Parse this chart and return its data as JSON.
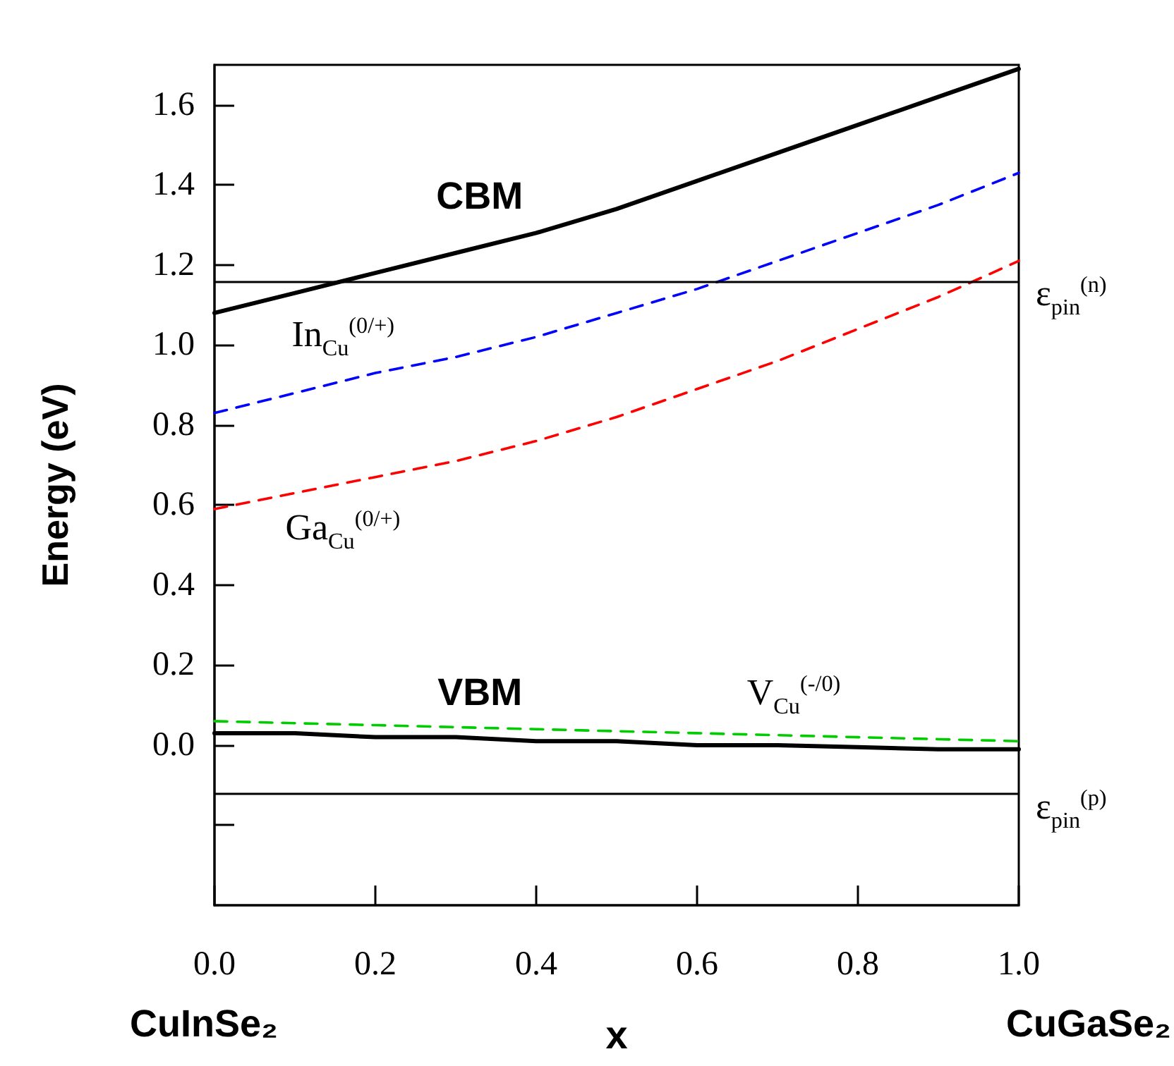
{
  "chart_data": {
    "type": "line",
    "xlabel": "x",
    "ylabel": "Energy (eV)",
    "x": [
      0,
      0.1,
      0.2,
      0.3,
      0.4,
      0.5,
      0.6,
      0.7,
      0.8,
      0.9,
      1.0
    ],
    "series": [
      {
        "name": "CBM",
        "color": "#000000",
        "line_style": "solid",
        "values": [
          1.08,
          1.13,
          1.18,
          1.23,
          1.28,
          1.34,
          1.41,
          1.48,
          1.55,
          1.62,
          1.69
        ]
      },
      {
        "name": "In$_{Cu}$$^{(0/+)}$",
        "color": "#0000ff",
        "line_style": "dashed",
        "values": [
          0.83,
          0.88,
          0.93,
          0.97,
          1.02,
          1.08,
          1.14,
          1.21,
          1.28,
          1.35,
          1.43
        ]
      },
      {
        "name": "Ga$_{Cu}$$^{(0/+)}$",
        "color": "#ff0000",
        "line_style": "dashed",
        "values": [
          0.59,
          0.63,
          0.67,
          0.71,
          0.76,
          0.82,
          0.89,
          0.96,
          1.04,
          1.12,
          1.21
        ]
      },
      {
        "name": "VBM",
        "color": "#000000",
        "line_style": "solid",
        "values": [
          0.03,
          0.03,
          0.02,
          0.02,
          0.01,
          0.01,
          0.0,
          0.0,
          -0.005,
          -0.01,
          -0.01
        ]
      },
      {
        "name": "V$_{Cu}$$^{(-/0)}$",
        "color": "#00cc00",
        "line_style": "dashed",
        "values": [
          0.06,
          0.055,
          0.05,
          0.045,
          0.04,
          0.035,
          0.03,
          0.025,
          0.02,
          0.015,
          0.01
        ]
      }
    ],
    "xlim": [
      0,
      1
    ],
    "xticks": [
      {
        "value": 0,
        "label": "0.0"
      },
      0.2,
      0.4,
      0.6,
      0.8,
      {
        "value": 1,
        "label": "1.0"
      }
    ],
    "ylim": [
      -0.4,
      1.7
    ],
    "yticks": [
      {
        "value": -0.2,
        "label": null
      },
      {
        "value": 0,
        "label": "0.0"
      },
      0.2,
      0.4,
      0.6,
      0.8,
      {
        "value": 1,
        "label": "1.0"
      },
      1.2,
      1.4,
      1.6
    ],
    "ref_lines": [
      {
        "axis": "y",
        "value": 1.16,
        "label": "ε$_{pin}$$^{(n)}$",
        "color": "#000000"
      },
      {
        "axis": "y",
        "value": -0.12,
        "label": "ε$_{pin}$$^{(p)}$",
        "color": "#000000"
      }
    ],
    "annotations": [
      "CuInSe₂",
      "CuGaSe₂"
    ],
    "grid": false,
    "legend": false,
    "marker": "none"
  }
}
